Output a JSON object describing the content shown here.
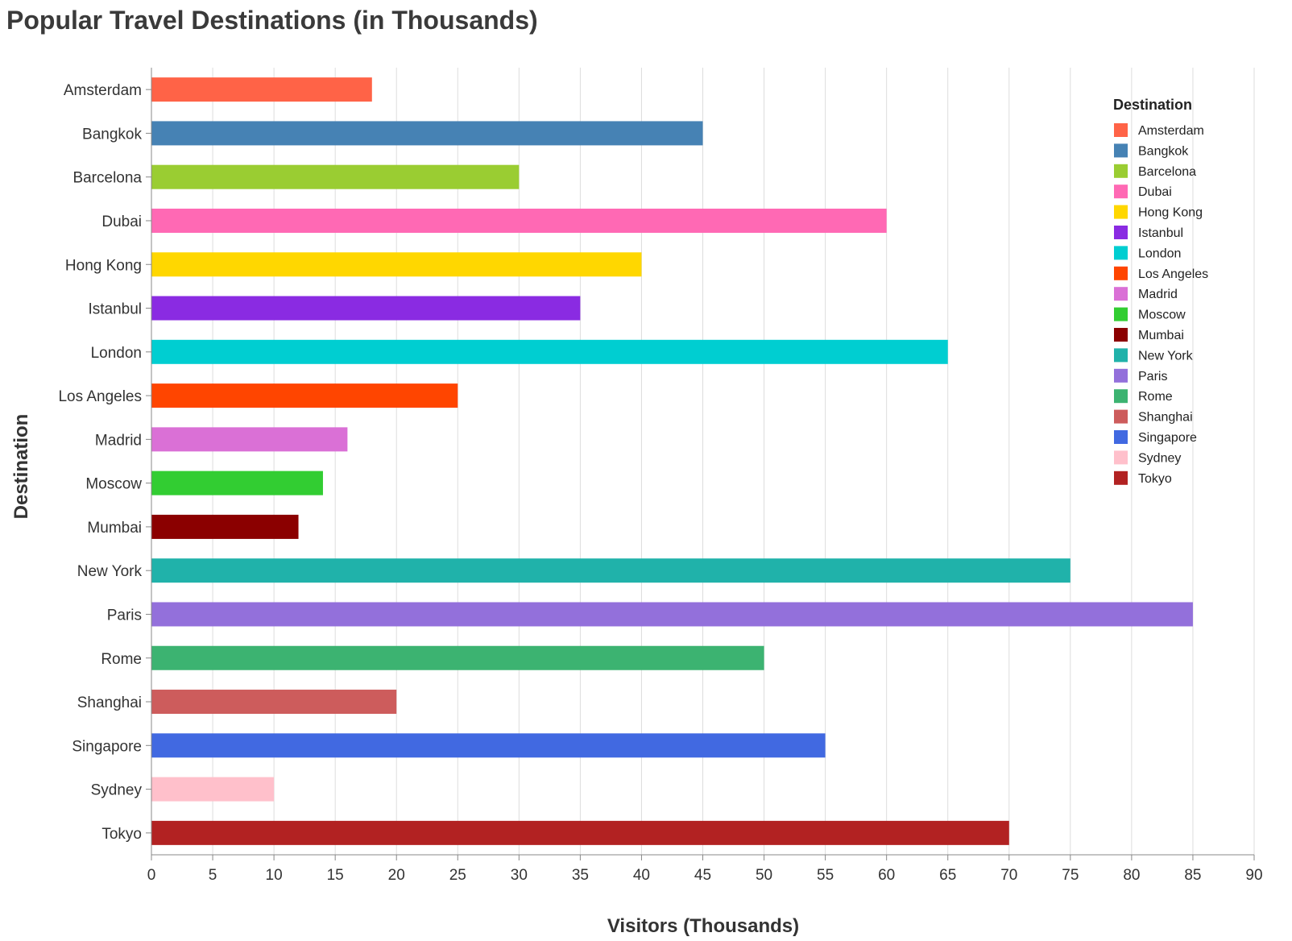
{
  "chart_data": {
    "type": "bar",
    "orientation": "horizontal",
    "title": "Popular Travel Destinations (in Thousands)",
    "xlabel": "Visitors (Thousands)",
    "ylabel": "Destination",
    "xlim": [
      0,
      90
    ],
    "x_ticks": [
      "0",
      "5",
      "10",
      "15",
      "20",
      "25",
      "30",
      "35",
      "40",
      "45",
      "50",
      "55",
      "60",
      "65",
      "70",
      "75",
      "80",
      "85",
      "90"
    ],
    "grid": true,
    "legend": {
      "title": "Destination",
      "placement": "top-right"
    },
    "categories": [
      "Amsterdam",
      "Bangkok",
      "Barcelona",
      "Dubai",
      "Hong Kong",
      "Istanbul",
      "London",
      "Los Angeles",
      "Madrid",
      "Moscow",
      "Mumbai",
      "New York",
      "Paris",
      "Rome",
      "Shanghai",
      "Singapore",
      "Sydney",
      "Tokyo"
    ],
    "values": [
      18,
      45,
      30,
      60,
      40,
      35,
      65,
      25,
      16,
      14,
      12,
      75,
      85,
      50,
      20,
      55,
      10,
      70
    ],
    "colors": [
      "#ff6347",
      "#4682b4",
      "#9acd32",
      "#ff69b4",
      "#ffd700",
      "#8a2be2",
      "#00ced1",
      "#ff4500",
      "#da70d6",
      "#32cd32",
      "#8b0000",
      "#20b2aa",
      "#9370db",
      "#3cb371",
      "#cd5c5c",
      "#4169e1",
      "#ffc0cb",
      "#b22222"
    ]
  }
}
